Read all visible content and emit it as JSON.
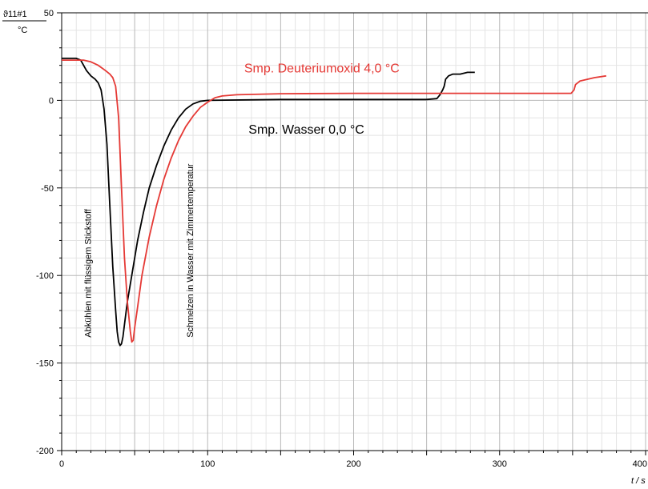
{
  "chart_data": {
    "type": "line",
    "y_unit_top": "ϑ11#1",
    "y_unit_bottom": "°C",
    "x_unit": "t / s",
    "xlim": [
      0,
      400
    ],
    "ylim": [
      -200,
      50
    ],
    "x_ticks": [
      0,
      100,
      200,
      300,
      400
    ],
    "y_ticks": [
      -200,
      -150,
      -100,
      -50,
      0,
      50
    ],
    "grid": true,
    "series": [
      {
        "name": "Smp. Wasser 0,0 °C",
        "color": "#000000",
        "points": [
          [
            0,
            24
          ],
          [
            10,
            24
          ],
          [
            13,
            23
          ],
          [
            17,
            17
          ],
          [
            20,
            14
          ],
          [
            23,
            12
          ],
          [
            25,
            10
          ],
          [
            27,
            6
          ],
          [
            29,
            -5
          ],
          [
            31,
            -25
          ],
          [
            33,
            -60
          ],
          [
            35,
            -95
          ],
          [
            37,
            -120
          ],
          [
            38,
            -132
          ],
          [
            39,
            -138
          ],
          [
            40,
            -140
          ],
          [
            41,
            -139
          ],
          [
            42,
            -135
          ],
          [
            43,
            -128
          ],
          [
            45,
            -115
          ],
          [
            48,
            -100
          ],
          [
            52,
            -80
          ],
          [
            56,
            -64
          ],
          [
            60,
            -50
          ],
          [
            65,
            -37
          ],
          [
            70,
            -26
          ],
          [
            75,
            -17
          ],
          [
            80,
            -10
          ],
          [
            85,
            -5
          ],
          [
            90,
            -2
          ],
          [
            95,
            -0.5
          ],
          [
            100,
            0
          ],
          [
            150,
            0.5
          ],
          [
            200,
            0.5
          ],
          [
            250,
            0.5
          ],
          [
            257,
            1
          ],
          [
            259,
            3
          ],
          [
            261,
            6
          ],
          [
            262,
            8
          ],
          [
            263,
            12
          ],
          [
            265,
            14
          ],
          [
            268,
            15
          ],
          [
            273,
            15
          ],
          [
            278,
            16
          ],
          [
            283,
            16
          ]
        ]
      },
      {
        "name": "Smp. Deuteriumoxid 4,0 °C",
        "color": "#e53935",
        "points": [
          [
            0,
            23
          ],
          [
            10,
            23
          ],
          [
            15,
            23
          ],
          [
            20,
            22
          ],
          [
            25,
            20
          ],
          [
            30,
            17
          ],
          [
            33,
            15
          ],
          [
            35,
            13
          ],
          [
            37,
            8
          ],
          [
            39,
            -10
          ],
          [
            41,
            -50
          ],
          [
            43,
            -90
          ],
          [
            45,
            -115
          ],
          [
            47,
            -132
          ],
          [
            48,
            -138
          ],
          [
            49,
            -137
          ],
          [
            50,
            -130
          ],
          [
            52,
            -118
          ],
          [
            55,
            -100
          ],
          [
            60,
            -78
          ],
          [
            65,
            -60
          ],
          [
            70,
            -45
          ],
          [
            75,
            -33
          ],
          [
            80,
            -23
          ],
          [
            85,
            -15
          ],
          [
            90,
            -9
          ],
          [
            95,
            -4
          ],
          [
            100,
            -1
          ],
          [
            105,
            1.5
          ],
          [
            110,
            2.5
          ],
          [
            120,
            3.2
          ],
          [
            150,
            3.8
          ],
          [
            200,
            4
          ],
          [
            300,
            4
          ],
          [
            349,
            4
          ],
          [
            351,
            6
          ],
          [
            352,
            9
          ],
          [
            355,
            11
          ],
          [
            360,
            12
          ],
          [
            365,
            13
          ],
          [
            373,
            14
          ]
        ]
      }
    ],
    "series_labels": [
      {
        "text": "Smp. Deuteriumoxid 4,0 °C",
        "x": 125,
        "y": 16,
        "color": "#e53935"
      },
      {
        "text": "Smp. Wasser 0,0 °C",
        "x": 128,
        "y": -19,
        "color": "#000000"
      }
    ],
    "annotations": [
      {
        "text": "Abkühlen mit flüssigem Stickstoff",
        "x": 20,
        "y": -140
      },
      {
        "text": "Schmelzen in Wasser mit Zimmertemperatur",
        "x": 90,
        "y": -140
      }
    ]
  }
}
